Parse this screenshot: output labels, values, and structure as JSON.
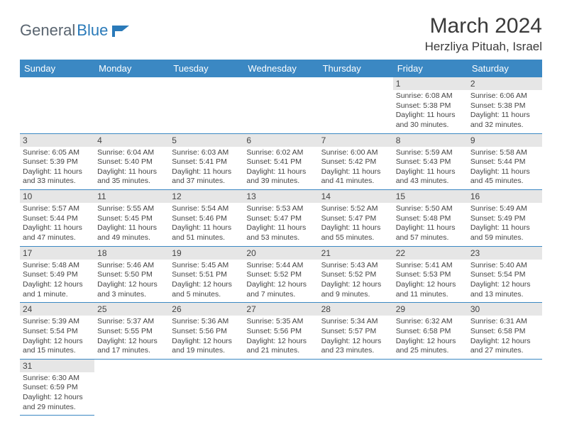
{
  "logo": {
    "text1": "General",
    "text2": "Blue"
  },
  "title": "March 2024",
  "location": "Herzliya Pituah, Israel",
  "colors": {
    "header_bg": "#3b88c3",
    "header_text": "#ffffff",
    "daybar_bg": "#e6e6e6",
    "border": "#3b88c3",
    "logo_gray": "#5a6570",
    "logo_blue": "#2a7ab9"
  },
  "weekdays": [
    "Sunday",
    "Monday",
    "Tuesday",
    "Wednesday",
    "Thursday",
    "Friday",
    "Saturday"
  ],
  "grid": [
    [
      {
        "empty": true
      },
      {
        "empty": true
      },
      {
        "empty": true
      },
      {
        "empty": true
      },
      {
        "empty": true
      },
      {
        "day": "1",
        "lines": [
          "Sunrise: 6:08 AM",
          "Sunset: 5:38 PM",
          "Daylight: 11 hours",
          "and 30 minutes."
        ]
      },
      {
        "day": "2",
        "lines": [
          "Sunrise: 6:06 AM",
          "Sunset: 5:38 PM",
          "Daylight: 11 hours",
          "and 32 minutes."
        ]
      }
    ],
    [
      {
        "day": "3",
        "lines": [
          "Sunrise: 6:05 AM",
          "Sunset: 5:39 PM",
          "Daylight: 11 hours",
          "and 33 minutes."
        ]
      },
      {
        "day": "4",
        "lines": [
          "Sunrise: 6:04 AM",
          "Sunset: 5:40 PM",
          "Daylight: 11 hours",
          "and 35 minutes."
        ]
      },
      {
        "day": "5",
        "lines": [
          "Sunrise: 6:03 AM",
          "Sunset: 5:41 PM",
          "Daylight: 11 hours",
          "and 37 minutes."
        ]
      },
      {
        "day": "6",
        "lines": [
          "Sunrise: 6:02 AM",
          "Sunset: 5:41 PM",
          "Daylight: 11 hours",
          "and 39 minutes."
        ]
      },
      {
        "day": "7",
        "lines": [
          "Sunrise: 6:00 AM",
          "Sunset: 5:42 PM",
          "Daylight: 11 hours",
          "and 41 minutes."
        ]
      },
      {
        "day": "8",
        "lines": [
          "Sunrise: 5:59 AM",
          "Sunset: 5:43 PM",
          "Daylight: 11 hours",
          "and 43 minutes."
        ]
      },
      {
        "day": "9",
        "lines": [
          "Sunrise: 5:58 AM",
          "Sunset: 5:44 PM",
          "Daylight: 11 hours",
          "and 45 minutes."
        ]
      }
    ],
    [
      {
        "day": "10",
        "lines": [
          "Sunrise: 5:57 AM",
          "Sunset: 5:44 PM",
          "Daylight: 11 hours",
          "and 47 minutes."
        ]
      },
      {
        "day": "11",
        "lines": [
          "Sunrise: 5:55 AM",
          "Sunset: 5:45 PM",
          "Daylight: 11 hours",
          "and 49 minutes."
        ]
      },
      {
        "day": "12",
        "lines": [
          "Sunrise: 5:54 AM",
          "Sunset: 5:46 PM",
          "Daylight: 11 hours",
          "and 51 minutes."
        ]
      },
      {
        "day": "13",
        "lines": [
          "Sunrise: 5:53 AM",
          "Sunset: 5:47 PM",
          "Daylight: 11 hours",
          "and 53 minutes."
        ]
      },
      {
        "day": "14",
        "lines": [
          "Sunrise: 5:52 AM",
          "Sunset: 5:47 PM",
          "Daylight: 11 hours",
          "and 55 minutes."
        ]
      },
      {
        "day": "15",
        "lines": [
          "Sunrise: 5:50 AM",
          "Sunset: 5:48 PM",
          "Daylight: 11 hours",
          "and 57 minutes."
        ]
      },
      {
        "day": "16",
        "lines": [
          "Sunrise: 5:49 AM",
          "Sunset: 5:49 PM",
          "Daylight: 11 hours",
          "and 59 minutes."
        ]
      }
    ],
    [
      {
        "day": "17",
        "lines": [
          "Sunrise: 5:48 AM",
          "Sunset: 5:49 PM",
          "Daylight: 12 hours",
          "and 1 minute."
        ]
      },
      {
        "day": "18",
        "lines": [
          "Sunrise: 5:46 AM",
          "Sunset: 5:50 PM",
          "Daylight: 12 hours",
          "and 3 minutes."
        ]
      },
      {
        "day": "19",
        "lines": [
          "Sunrise: 5:45 AM",
          "Sunset: 5:51 PM",
          "Daylight: 12 hours",
          "and 5 minutes."
        ]
      },
      {
        "day": "20",
        "lines": [
          "Sunrise: 5:44 AM",
          "Sunset: 5:52 PM",
          "Daylight: 12 hours",
          "and 7 minutes."
        ]
      },
      {
        "day": "21",
        "lines": [
          "Sunrise: 5:43 AM",
          "Sunset: 5:52 PM",
          "Daylight: 12 hours",
          "and 9 minutes."
        ]
      },
      {
        "day": "22",
        "lines": [
          "Sunrise: 5:41 AM",
          "Sunset: 5:53 PM",
          "Daylight: 12 hours",
          "and 11 minutes."
        ]
      },
      {
        "day": "23",
        "lines": [
          "Sunrise: 5:40 AM",
          "Sunset: 5:54 PM",
          "Daylight: 12 hours",
          "and 13 minutes."
        ]
      }
    ],
    [
      {
        "day": "24",
        "lines": [
          "Sunrise: 5:39 AM",
          "Sunset: 5:54 PM",
          "Daylight: 12 hours",
          "and 15 minutes."
        ]
      },
      {
        "day": "25",
        "lines": [
          "Sunrise: 5:37 AM",
          "Sunset: 5:55 PM",
          "Daylight: 12 hours",
          "and 17 minutes."
        ]
      },
      {
        "day": "26",
        "lines": [
          "Sunrise: 5:36 AM",
          "Sunset: 5:56 PM",
          "Daylight: 12 hours",
          "and 19 minutes."
        ]
      },
      {
        "day": "27",
        "lines": [
          "Sunrise: 5:35 AM",
          "Sunset: 5:56 PM",
          "Daylight: 12 hours",
          "and 21 minutes."
        ]
      },
      {
        "day": "28",
        "lines": [
          "Sunrise: 5:34 AM",
          "Sunset: 5:57 PM",
          "Daylight: 12 hours",
          "and 23 minutes."
        ]
      },
      {
        "day": "29",
        "lines": [
          "Sunrise: 6:32 AM",
          "Sunset: 6:58 PM",
          "Daylight: 12 hours",
          "and 25 minutes."
        ]
      },
      {
        "day": "30",
        "lines": [
          "Sunrise: 6:31 AM",
          "Sunset: 6:58 PM",
          "Daylight: 12 hours",
          "and 27 minutes."
        ]
      }
    ],
    [
      {
        "day": "31",
        "lines": [
          "Sunrise: 6:30 AM",
          "Sunset: 6:59 PM",
          "Daylight: 12 hours",
          "and 29 minutes."
        ]
      },
      {
        "empty": true
      },
      {
        "empty": true
      },
      {
        "empty": true
      },
      {
        "empty": true
      },
      {
        "empty": true
      },
      {
        "empty": true
      }
    ]
  ]
}
